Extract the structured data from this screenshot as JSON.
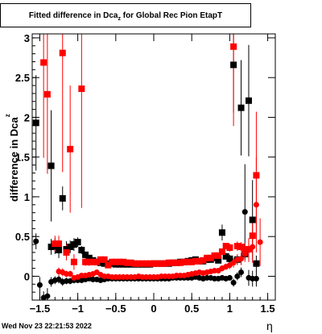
{
  "title": {
    "main": "Fitted difference in Dca",
    "sub": "z",
    "rest": " for Global Rec Pion EtapT"
  },
  "footer": {
    "timestamp": "Wed Nov 23 22:21:53 2022"
  },
  "chart_data": {
    "type": "scatter",
    "title": "Fitted difference in Dca_z for Global Rec Pion EtapT",
    "xlabel": "η",
    "ylabel": "difference in Dca_z",
    "xlim": [
      -1.6,
      1.6
    ],
    "ylim": [
      -0.3,
      3.05
    ],
    "xticks": [
      -1.5,
      -1,
      -0.5,
      0,
      0.5,
      1,
      1.5
    ],
    "xtick_labels": [
      "−1.5",
      "−1",
      "−0.5",
      "0",
      "0.5",
      "1",
      "1.5"
    ],
    "yticks": [
      0,
      0.5,
      1,
      1.5,
      2,
      2.5,
      3
    ],
    "ytick_labels": [
      "0",
      "0.5",
      "1",
      "1.5",
      "2",
      "2.5",
      "3"
    ],
    "series": [
      {
        "marker": "square",
        "color": "#000000",
        "points": [
          [
            -1.55,
            1.93,
            0.6
          ],
          [
            -1.35,
            1.39,
            0.7
          ],
          [
            -1.35,
            0.37,
            0.1
          ],
          [
            -1.3,
            0.38,
            0.1
          ],
          [
            -1.25,
            0.33,
            0.1
          ],
          [
            -1.2,
            0.98,
            0.15
          ],
          [
            -1.15,
            0.34,
            0.1
          ],
          [
            -1.1,
            0.37,
            0.08
          ],
          [
            -1.05,
            0.4,
            0.08
          ],
          [
            -1.0,
            0.43,
            0.06
          ],
          [
            -0.95,
            0.33,
            0.05
          ],
          [
            -0.9,
            0.27,
            0.04
          ],
          [
            -0.85,
            0.23,
            0.03
          ],
          [
            -0.8,
            0.2,
            0.03
          ],
          [
            -0.75,
            0.18,
            0.03
          ],
          [
            -0.7,
            0.17,
            0.02
          ],
          [
            -0.65,
            0.16,
            0.02
          ],
          [
            -0.6,
            0.16,
            0.02
          ],
          [
            -0.55,
            0.16,
            0.02
          ],
          [
            -0.5,
            0.15,
            0.02
          ],
          [
            -0.45,
            0.15,
            0.02
          ],
          [
            -0.4,
            0.15,
            0.02
          ],
          [
            -0.35,
            0.15,
            0.02
          ],
          [
            -0.3,
            0.15,
            0.02
          ],
          [
            -0.25,
            0.15,
            0.02
          ],
          [
            -0.2,
            0.15,
            0.02
          ],
          [
            -0.15,
            0.15,
            0.02
          ],
          [
            -0.1,
            0.15,
            0.02
          ],
          [
            -0.05,
            0.15,
            0.02
          ],
          [
            0.0,
            0.16,
            0.02
          ],
          [
            0.05,
            0.16,
            0.02
          ],
          [
            0.1,
            0.16,
            0.02
          ],
          [
            0.15,
            0.16,
            0.02
          ],
          [
            0.2,
            0.16,
            0.02
          ],
          [
            0.25,
            0.17,
            0.02
          ],
          [
            0.3,
            0.17,
            0.02
          ],
          [
            0.35,
            0.18,
            0.02
          ],
          [
            0.4,
            0.18,
            0.02
          ],
          [
            0.45,
            0.19,
            0.02
          ],
          [
            0.5,
            0.2,
            0.02
          ],
          [
            0.55,
            0.21,
            0.02
          ],
          [
            0.6,
            0.19,
            0.02
          ],
          [
            0.65,
            0.19,
            0.02
          ],
          [
            0.7,
            0.21,
            0.03
          ],
          [
            0.75,
            0.21,
            0.03
          ],
          [
            0.8,
            0.23,
            0.03
          ],
          [
            0.85,
            0.2,
            0.03
          ],
          [
            0.9,
            0.55,
            0.1
          ],
          [
            0.95,
            0.25,
            0.04
          ],
          [
            1.0,
            0.22,
            0.05
          ],
          [
            1.05,
            2.66,
            0.6
          ],
          [
            1.1,
            0.21,
            0.05
          ],
          [
            1.15,
            2.12,
            0.6
          ],
          [
            1.2,
            0.28,
            0.07
          ],
          [
            1.25,
            2.21,
            0.7
          ],
          [
            1.3,
            0.71,
            0.5
          ],
          [
            1.35,
            0.16,
            0.1
          ]
        ]
      },
      {
        "marker": "circle",
        "color": "#000000",
        "points": [
          [
            -1.55,
            0.44,
            0.1
          ],
          [
            -1.5,
            -0.11,
            0.1
          ],
          [
            -1.45,
            -0.27,
            0.08
          ],
          [
            -1.4,
            -0.25,
            0.1
          ],
          [
            -1.35,
            -0.07,
            0.06
          ],
          [
            -1.3,
            -0.05,
            0.05
          ],
          [
            -1.25,
            -0.04,
            0.05
          ],
          [
            -1.2,
            -0.07,
            0.05
          ],
          [
            -1.15,
            -0.06,
            0.04
          ],
          [
            -1.1,
            -0.06,
            0.04
          ],
          [
            -1.05,
            -0.05,
            0.04
          ],
          [
            -1.0,
            -0.05,
            0.03
          ],
          [
            -0.95,
            -0.05,
            0.03
          ],
          [
            -0.9,
            -0.04,
            0.03
          ],
          [
            -0.85,
            -0.03,
            0.03
          ],
          [
            -0.8,
            -0.04,
            0.02
          ],
          [
            -0.75,
            -0.04,
            0.02
          ],
          [
            -0.7,
            -0.05,
            0.02
          ],
          [
            -0.65,
            -0.04,
            0.02
          ],
          [
            -0.6,
            -0.03,
            0.02
          ],
          [
            -0.55,
            -0.03,
            0.02
          ],
          [
            -0.5,
            -0.03,
            0.02
          ],
          [
            -0.45,
            -0.03,
            0.02
          ],
          [
            -0.4,
            -0.03,
            0.02
          ],
          [
            -0.35,
            -0.03,
            0.02
          ],
          [
            -0.3,
            -0.03,
            0.02
          ],
          [
            -0.25,
            -0.03,
            0.02
          ],
          [
            -0.2,
            -0.03,
            0.02
          ],
          [
            -0.15,
            -0.03,
            0.02
          ],
          [
            -0.1,
            -0.03,
            0.02
          ],
          [
            -0.05,
            -0.03,
            0.02
          ],
          [
            0.0,
            -0.03,
            0.02
          ],
          [
            0.05,
            -0.03,
            0.02
          ],
          [
            0.1,
            -0.03,
            0.02
          ],
          [
            0.15,
            -0.03,
            0.02
          ],
          [
            0.2,
            -0.03,
            0.02
          ],
          [
            0.25,
            -0.02,
            0.02
          ],
          [
            0.3,
            -0.02,
            0.02
          ],
          [
            0.35,
            -0.02,
            0.02
          ],
          [
            0.4,
            -0.02,
            0.02
          ],
          [
            0.45,
            -0.02,
            0.02
          ],
          [
            0.5,
            -0.02,
            0.02
          ],
          [
            0.55,
            -0.01,
            0.02
          ],
          [
            0.6,
            -0.02,
            0.02
          ],
          [
            0.65,
            -0.03,
            0.02
          ],
          [
            0.7,
            -0.02,
            0.02
          ],
          [
            0.75,
            -0.02,
            0.03
          ],
          [
            0.8,
            -0.03,
            0.03
          ],
          [
            0.85,
            -0.03,
            0.03
          ],
          [
            0.9,
            -0.02,
            0.03
          ],
          [
            0.95,
            -0.03,
            0.03
          ],
          [
            1.0,
            -0.02,
            0.03
          ],
          [
            1.05,
            -0.08,
            0.05
          ],
          [
            1.1,
            0.0,
            0.05
          ],
          [
            1.15,
            0.05,
            0.06
          ],
          [
            1.2,
            0.81,
            0.6
          ],
          [
            1.25,
            -0.02,
            0.1
          ],
          [
            1.3,
            -0.03,
            0.1
          ],
          [
            1.35,
            -0.03,
            0.1
          ]
        ]
      },
      {
        "marker": "square",
        "color": "#ff0000",
        "points": [
          [
            -1.45,
            2.69,
            1.2
          ],
          [
            -1.4,
            2.29,
            1.0
          ],
          [
            -1.3,
            0.41,
            0.1
          ],
          [
            -1.25,
            0.41,
            0.1
          ],
          [
            -1.2,
            2.81,
            1.5
          ],
          [
            -1.15,
            0.3,
            0.1
          ],
          [
            -1.1,
            1.6,
            0.8
          ],
          [
            -1.05,
            0.18,
            0.1
          ],
          [
            -0.95,
            2.36,
            1.5
          ],
          [
            -0.9,
            0.18,
            0.05
          ],
          [
            -0.85,
            0.18,
            0.05
          ],
          [
            -0.8,
            0.18,
            0.04
          ],
          [
            -0.75,
            0.18,
            0.04
          ],
          [
            -0.7,
            0.21,
            0.03
          ],
          [
            -0.65,
            0.21,
            0.03
          ],
          [
            -0.6,
            0.14,
            0.03
          ],
          [
            -0.55,
            0.18,
            0.03
          ],
          [
            -0.5,
            0.18,
            0.03
          ],
          [
            -0.45,
            0.18,
            0.02
          ],
          [
            -0.4,
            0.18,
            0.02
          ],
          [
            -0.35,
            0.17,
            0.02
          ],
          [
            -0.3,
            0.17,
            0.02
          ],
          [
            -0.25,
            0.16,
            0.02
          ],
          [
            -0.2,
            0.16,
            0.02
          ],
          [
            -0.15,
            0.16,
            0.02
          ],
          [
            -0.1,
            0.16,
            0.02
          ],
          [
            -0.05,
            0.16,
            0.02
          ],
          [
            0.0,
            0.16,
            0.02
          ],
          [
            0.05,
            0.16,
            0.02
          ],
          [
            0.1,
            0.16,
            0.02
          ],
          [
            0.15,
            0.16,
            0.02
          ],
          [
            0.2,
            0.17,
            0.02
          ],
          [
            0.25,
            0.17,
            0.02
          ],
          [
            0.3,
            0.17,
            0.02
          ],
          [
            0.35,
            0.17,
            0.02
          ],
          [
            0.4,
            0.18,
            0.02
          ],
          [
            0.45,
            0.18,
            0.02
          ],
          [
            0.5,
            0.18,
            0.02
          ],
          [
            0.55,
            0.19,
            0.02
          ],
          [
            0.6,
            0.19,
            0.02
          ],
          [
            0.65,
            0.2,
            0.02
          ],
          [
            0.7,
            0.23,
            0.02
          ],
          [
            0.75,
            0.23,
            0.03
          ],
          [
            0.8,
            0.26,
            0.03
          ],
          [
            0.85,
            0.26,
            0.03
          ],
          [
            0.9,
            0.31,
            0.04
          ],
          [
            0.95,
            0.38,
            0.04
          ],
          [
            1.0,
            0.36,
            0.05
          ],
          [
            1.05,
            2.89,
            1.0
          ],
          [
            1.1,
            0.38,
            0.06
          ],
          [
            1.15,
            0.37,
            0.06
          ],
          [
            1.2,
            0.34,
            0.08
          ],
          [
            1.25,
            0.34,
            0.1
          ],
          [
            1.3,
            0.51,
            0.2
          ],
          [
            1.35,
            1.27,
            0.8
          ]
        ]
      },
      {
        "marker": "circle",
        "color": "#ff0000",
        "points": [
          [
            -1.25,
            0.06,
            0.05
          ],
          [
            -1.2,
            0.05,
            0.05
          ],
          [
            -1.15,
            0.03,
            0.04
          ],
          [
            -1.1,
            0.03,
            0.04
          ],
          [
            -1.05,
            -0.02,
            0.03
          ],
          [
            -1.0,
            -0.01,
            0.03
          ],
          [
            -0.95,
            0.01,
            0.03
          ],
          [
            -0.9,
            0.01,
            0.03
          ],
          [
            -0.85,
            0.02,
            0.03
          ],
          [
            -0.8,
            0.03,
            0.02
          ],
          [
            -0.75,
            0.05,
            0.02
          ],
          [
            -0.7,
            0.02,
            0.02
          ],
          [
            -0.65,
            0.0,
            0.02
          ],
          [
            -0.6,
            0.0,
            0.02
          ],
          [
            -0.55,
            -0.01,
            0.02
          ],
          [
            -0.5,
            -0.01,
            0.02
          ],
          [
            -0.45,
            -0.01,
            0.02
          ],
          [
            -0.4,
            -0.01,
            0.02
          ],
          [
            -0.35,
            -0.01,
            0.02
          ],
          [
            -0.3,
            -0.01,
            0.02
          ],
          [
            -0.25,
            -0.01,
            0.02
          ],
          [
            -0.2,
            0.0,
            0.02
          ],
          [
            -0.15,
            -0.01,
            0.02
          ],
          [
            -0.1,
            -0.01,
            0.02
          ],
          [
            -0.05,
            -0.01,
            0.02
          ],
          [
            0.0,
            -0.01,
            0.02
          ],
          [
            0.05,
            -0.01,
            0.02
          ],
          [
            0.1,
            0.0,
            0.02
          ],
          [
            0.15,
            0.0,
            0.02
          ],
          [
            0.2,
            0.0,
            0.02
          ],
          [
            0.25,
            0.0,
            0.02
          ],
          [
            0.3,
            0.01,
            0.02
          ],
          [
            0.35,
            0.01,
            0.02
          ],
          [
            0.4,
            0.01,
            0.02
          ],
          [
            0.45,
            0.02,
            0.02
          ],
          [
            0.5,
            0.03,
            0.02
          ],
          [
            0.55,
            0.04,
            0.02
          ],
          [
            0.6,
            0.05,
            0.02
          ],
          [
            0.65,
            0.04,
            0.02
          ],
          [
            0.7,
            0.05,
            0.03
          ],
          [
            0.75,
            0.06,
            0.03
          ],
          [
            0.8,
            0.07,
            0.03
          ],
          [
            0.85,
            0.07,
            0.03
          ],
          [
            0.9,
            0.1,
            0.04
          ],
          [
            0.95,
            0.12,
            0.04
          ],
          [
            1.0,
            0.14,
            0.05
          ],
          [
            1.05,
            0.17,
            0.06
          ],
          [
            1.1,
            0.21,
            0.07
          ],
          [
            1.15,
            0.22,
            0.08
          ],
          [
            1.2,
            0.28,
            0.1
          ],
          [
            1.25,
            0.33,
            0.15
          ],
          [
            1.3,
            0.37,
            0.2
          ],
          [
            1.35,
            0.9,
            0.6
          ],
          [
            1.4,
            0.43,
            0.3
          ]
        ]
      }
    ]
  }
}
